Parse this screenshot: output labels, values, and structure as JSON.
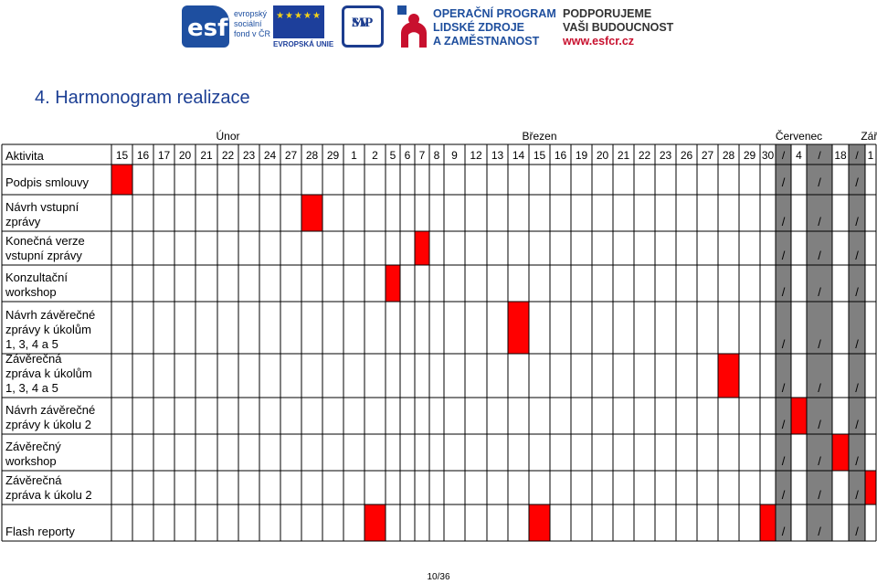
{
  "logos": {
    "esf_mark": "esf",
    "esf_lines": [
      "evropský",
      "sociální",
      "fond v ČR"
    ],
    "eu_label": "EVROPSKÁ UNIE",
    "mpsv_lines": [
      "MP",
      "SV"
    ],
    "op_lines": [
      "OPERAČNÍ PROGRAM",
      "LIDSKÉ ZDROJE",
      "A ZAMĚSTNANOST"
    ],
    "support_lines": [
      "PODPORUJEME",
      "VAŠI BUDOUCNOST"
    ],
    "support_url": "www.esfcr.cz"
  },
  "title": "4. Harmonogram realizace",
  "page_number": "10/36",
  "schedule": {
    "months": [
      {
        "label": "Únor",
        "col": 5
      },
      {
        "label": "Březen",
        "col": 21
      },
      {
        "label": "Červenec",
        "col": 34
      },
      {
        "label": "Září",
        "col": 38
      }
    ],
    "activity_header": "Aktivita",
    "days": [
      "15",
      "16",
      "17",
      "20",
      "21",
      "22",
      "23",
      "24",
      "27",
      "28",
      "29",
      "1",
      "2",
      "5",
      "6",
      "7",
      "8",
      "9",
      "12",
      "13",
      "14",
      "15",
      "16",
      "19",
      "20",
      "21",
      "22",
      "23",
      "26",
      "27",
      "28",
      "29",
      "30",
      "/",
      "4",
      "/",
      "18",
      "/",
      "1"
    ],
    "gray_cols": [
      33,
      35,
      37
    ],
    "rows": [
      {
        "label": [
          "Podpis smlouvy"
        ],
        "red": [
          0
        ],
        "slashes": true
      },
      {
        "label": [
          "Návrh vstupní",
          "zprávy"
        ],
        "red": [
          9
        ],
        "slashes": true
      },
      {
        "label": [
          "Konečná verze",
          "vstupní zprávy"
        ],
        "red": [
          15
        ],
        "slashes": true
      },
      {
        "label": [
          "Konzultační",
          "workshop"
        ],
        "red": [
          13
        ],
        "slashes": true
      },
      {
        "label": [
          "Návrh závěrečné",
          "zprávy k úkolům",
          "1, 3, 4 a 5"
        ],
        "red": [
          20
        ],
        "slashes": true
      },
      {
        "label": [
          "Závěrečná",
          "zpráva k úkolům",
          "1, 3, 4 a 5"
        ],
        "red": [
          30
        ],
        "slashes": true
      },
      {
        "label": [
          "Návrh závěrečné",
          "zprávy k úkolu 2"
        ],
        "red": [
          34
        ],
        "slashes": true
      },
      {
        "label": [
          "Závěrečný",
          "workshop"
        ],
        "red": [
          36
        ],
        "slashes": true
      },
      {
        "label": [
          "Závěrečná",
          "zpráva k úkolu 2"
        ],
        "red": [
          38
        ],
        "slashes": true
      },
      {
        "label": [
          "Flash reporty"
        ],
        "red": [
          12,
          21,
          32
        ],
        "slashes": true
      }
    ],
    "slash_text": "/",
    "colors": {
      "red": "#ff0000",
      "gray": "#808080",
      "grid": "#000000"
    }
  }
}
